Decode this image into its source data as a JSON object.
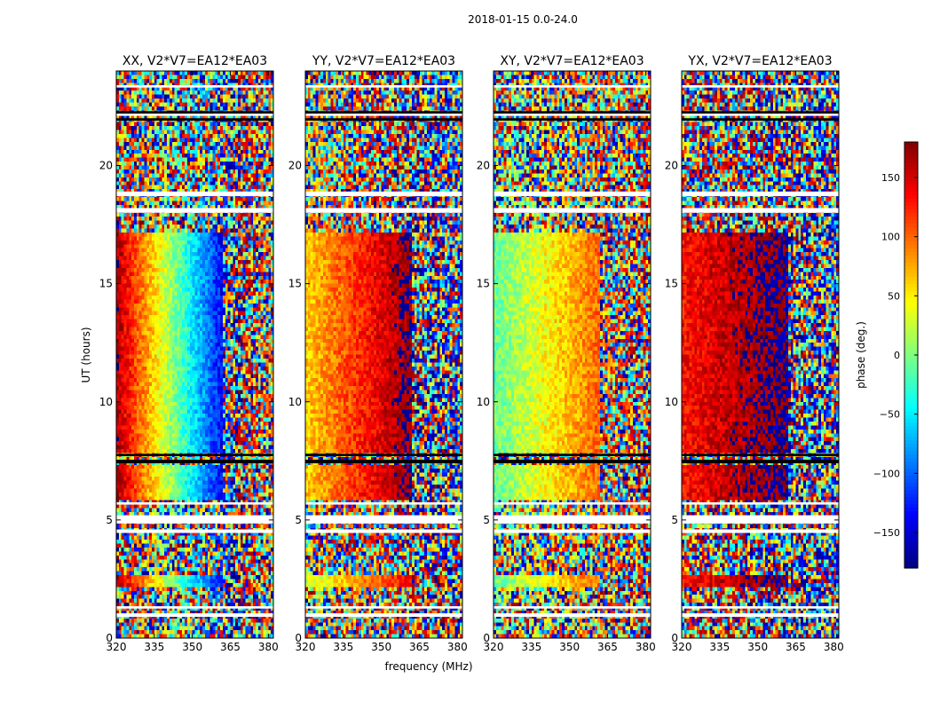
{
  "chart_data": {
    "type": "heatmap",
    "suptitle": "2018-01-15 0.0-24.0",
    "xlabel": "frequency (MHz)",
    "ylabel": "UT (hours)",
    "xlim": [
      320,
      382
    ],
    "ylim": [
      0,
      24
    ],
    "xticks": [
      "320",
      "335",
      "350",
      "365",
      "380"
    ],
    "yticks": [
      "0",
      "5",
      "10",
      "15",
      "20"
    ],
    "panels": [
      {
        "title": "XX, V2*V7=EA12*EA03",
        "pattern": "XX"
      },
      {
        "title": "YY, V2*V7=EA12*EA03",
        "pattern": "YY"
      },
      {
        "title": "XY, V2*V7=EA12*EA03",
        "pattern": "XY"
      },
      {
        "title": "YX, V2*V7=EA12*EA03",
        "pattern": "YX"
      }
    ],
    "colorbar": {
      "label": "phase (deg.)",
      "range": [
        -180,
        180
      ],
      "ticks": [
        "150",
        "100",
        "50",
        "0",
        "−50",
        "−100",
        "−150"
      ],
      "tick_values": [
        150,
        100,
        50,
        0,
        -50,
        -100,
        -150
      ],
      "colormap": "jet"
    },
    "blank_bands_hours": [
      [
        0.9,
        1.05
      ],
      [
        1.25,
        1.35
      ],
      [
        4.45,
        4.6
      ],
      [
        4.85,
        5.2
      ],
      [
        5.65,
        5.75
      ],
      [
        18.0,
        18.2
      ],
      [
        18.7,
        18.9
      ],
      [
        22.1,
        22.2
      ],
      [
        23.3,
        23.4
      ]
    ],
    "dark_bands_hours": [
      [
        7.4,
        7.55
      ],
      [
        7.7,
        7.8
      ],
      [
        21.9,
        22.0
      ],
      [
        22.2,
        22.3
      ]
    ]
  }
}
